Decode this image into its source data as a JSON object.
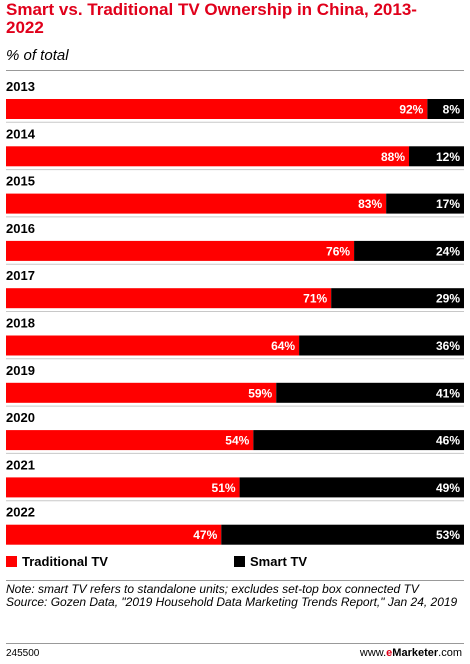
{
  "header": {
    "title": "Smart vs. Traditional TV Ownership in China, 2013-2022",
    "subtitle": "% of total"
  },
  "chart_data": {
    "type": "bar",
    "stacked": true,
    "orientation": "horizontal",
    "categories": [
      "2013",
      "2014",
      "2015",
      "2016",
      "2017",
      "2018",
      "2019",
      "2020",
      "2021",
      "2022"
    ],
    "series": [
      {
        "name": "Traditional TV",
        "color": "#ff0000",
        "values": [
          92,
          88,
          83,
          76,
          71,
          64,
          59,
          54,
          51,
          47
        ],
        "labels": [
          "92%",
          "88%",
          "83%",
          "76%",
          "71%",
          "64%",
          "59%",
          "54%",
          "51%",
          "47%"
        ]
      },
      {
        "name": "Smart TV",
        "color": "#000000",
        "values": [
          8,
          12,
          17,
          24,
          29,
          36,
          41,
          46,
          49,
          53
        ],
        "labels": [
          "8%",
          "12%",
          "17%",
          "24%",
          "29%",
          "36%",
          "41%",
          "46%",
          "49%",
          "53%"
        ]
      }
    ],
    "xlim": [
      0,
      100
    ],
    "unit": "%",
    "legend": "bottom",
    "grid": false
  },
  "legend": {
    "items": [
      {
        "label": "Traditional TV",
        "color": "#ff0000"
      },
      {
        "label": "Smart TV",
        "color": "#000000"
      }
    ]
  },
  "notes": {
    "note": "Note: smart TV refers to standalone units; excludes set-top box connected TV",
    "source": "Source: Gozen Data, \"2019 Household Data Marketing Trends Report,\" Jan 24, 2019"
  },
  "footer": {
    "chart_id": "245500",
    "brand_prefix": "www.",
    "brand_e": "e",
    "brand_rest": "Marketer",
    "brand_suffix": ".com"
  }
}
